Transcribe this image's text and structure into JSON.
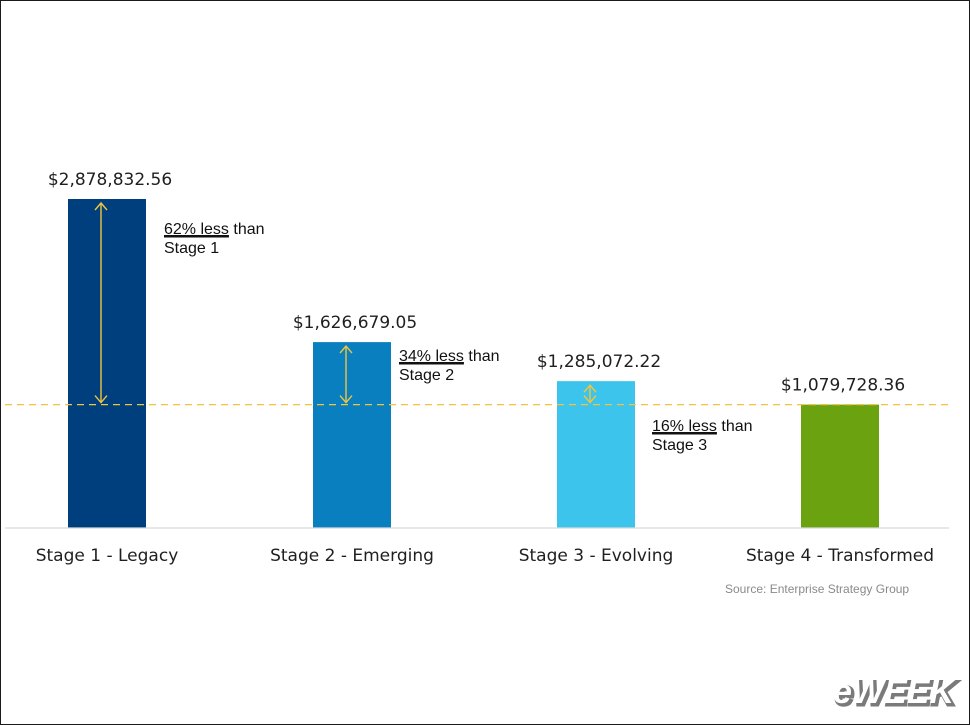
{
  "chart_data": {
    "type": "bar",
    "categories": [
      "Stage 1 - Legacy",
      "Stage 2 - Emerging",
      "Stage 3 - Evolving",
      "Stage 4 - Transformed"
    ],
    "values": [
      2878832.56,
      1626679.05,
      1285072.22,
      1079728.36
    ],
    "value_labels": [
      "$2,878,832.56",
      "$1,626,679.05",
      "$1,285,072.22",
      "$1,079,728.36"
    ],
    "colors": [
      "#003f7d",
      "#0a7fbf",
      "#3cc4ec",
      "#6aa30f"
    ],
    "ylim": [
      0,
      3200000
    ],
    "grid": false,
    "reference_line": {
      "value": 1079728.36,
      "color": "#f0c53d",
      "style": "dashed"
    },
    "annotations": [
      {
        "underlined": "62% less",
        "rest": " than",
        "line2": "Stage 1"
      },
      {
        "underlined": "34% less",
        "rest": " than",
        "line2": "Stage 2"
      },
      {
        "underlined": "16% less",
        "rest": " than",
        "line2": "Stage 3"
      }
    ],
    "source_text": "Source: Enterprise Strategy Group"
  },
  "logo": {
    "text": "eWEEK"
  }
}
